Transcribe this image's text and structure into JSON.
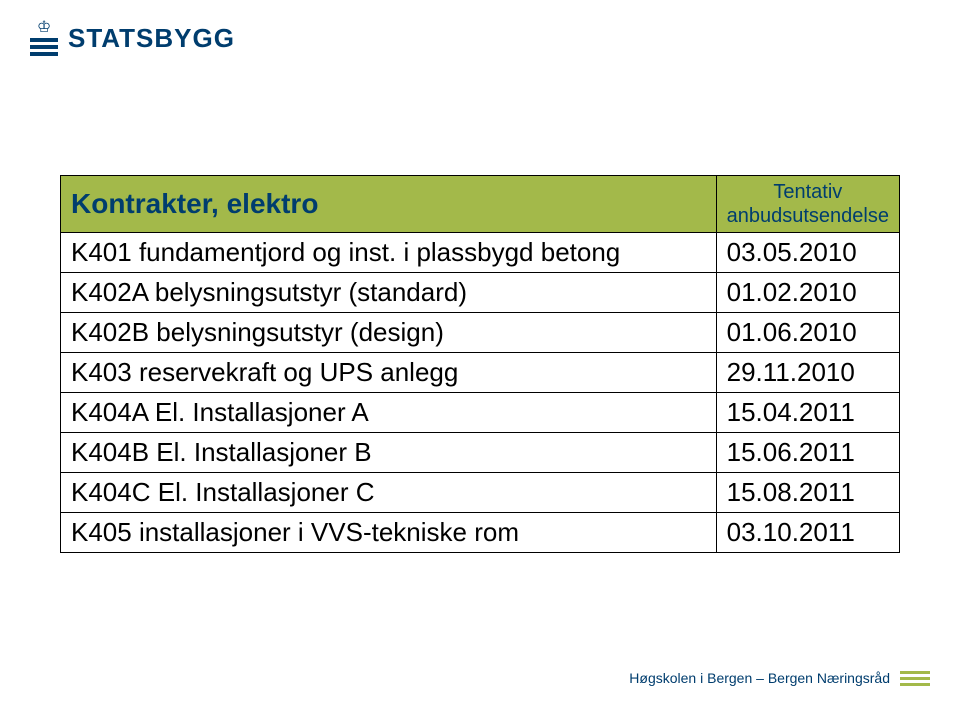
{
  "logo": {
    "text": "STATSBYGG"
  },
  "table": {
    "header": {
      "left": "Kontrakter, elektro",
      "right_line1": "Tentativ",
      "right_line2": "anbudsutsendelse"
    },
    "rows": [
      {
        "label": "K401 fundamentjord og inst. i plassbygd betong",
        "date": "03.05.2010"
      },
      {
        "label": "K402A belysningsutstyr  (standard)",
        "date": "01.02.2010"
      },
      {
        "label": "K402B belysningsutstyr (design)",
        "date": "01.06.2010"
      },
      {
        "label": "K403 reservekraft og UPS anlegg",
        "date": "29.11.2010"
      },
      {
        "label": "K404A El. Installasjoner A",
        "date": "15.04.2011"
      },
      {
        "label": "K404B El. Installasjoner B",
        "date": "15.06.2011"
      },
      {
        "label": "K404C El. Installasjoner C",
        "date": "15.08.2011"
      },
      {
        "label": "K405 installasjoner i VVS-tekniske rom",
        "date": "03.10.2011"
      }
    ]
  },
  "footer": {
    "text": "Høgskolen i Bergen – Bergen Næringsråd"
  },
  "colors": {
    "brand_blue": "#003d6e",
    "header_green": "#a3b94a",
    "background": "#ffffff",
    "border": "#000000"
  }
}
